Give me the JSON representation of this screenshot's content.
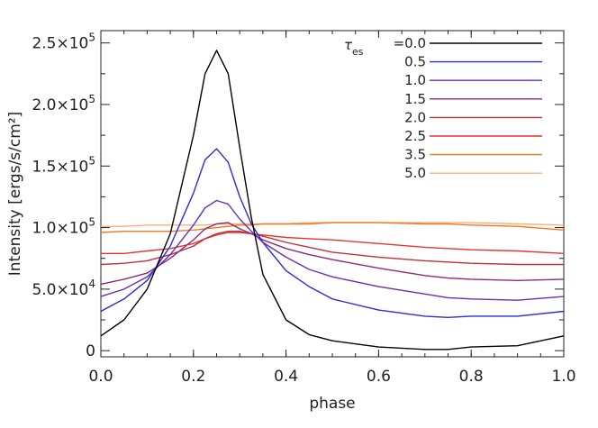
{
  "chart_data": {
    "type": "line",
    "title": "",
    "xlabel": "phase",
    "ylabel": "Intensity [ergs/s/cm²]",
    "xlim": [
      0.0,
      1.0
    ],
    "ylim": [
      -5000,
      260000
    ],
    "x_ticks": [
      0.0,
      0.2,
      0.4,
      0.6,
      0.8,
      1.0
    ],
    "x_tick_labels": [
      "0.0",
      "0.2",
      "0.4",
      "0.6",
      "0.8",
      "1.0"
    ],
    "y_ticks": [
      0,
      50000,
      100000,
      150000,
      200000,
      250000
    ],
    "y_tick_labels": [
      {
        "mantissa": "0",
        "exp": ""
      },
      {
        "mantissa": "5.0×10",
        "exp": "4"
      },
      {
        "mantissa": "1.0×10",
        "exp": "5"
      },
      {
        "mantissa": "1.5×10",
        "exp": "5"
      },
      {
        "mantissa": "2.0×10",
        "exp": "5"
      },
      {
        "mantissa": "2.5×10",
        "exp": "5"
      }
    ],
    "grid": false,
    "legend_position": "top-right",
    "legend_symbol": {
      "base": "τ",
      "sub": "es"
    },
    "x": [
      0.0,
      0.05,
      0.1,
      0.15,
      0.2,
      0.225,
      0.25,
      0.275,
      0.3,
      0.325,
      0.35,
      0.4,
      0.45,
      0.5,
      0.6,
      0.7,
      0.75,
      0.8,
      0.9,
      1.0
    ],
    "series": [
      {
        "name": "=0.0",
        "color": "#000000",
        "values": [
          12000,
          25000,
          50000,
          95000,
          175000,
          225000,
          244000,
          225000,
          165000,
          108000,
          62000,
          25000,
          13000,
          8000,
          3000,
          1000,
          1000,
          3000,
          4000,
          12000
        ]
      },
      {
        "name": "0.5",
        "color": "#2b2bd9",
        "values": [
          32000,
          42000,
          57000,
          85000,
          128000,
          155000,
          164000,
          153000,
          125000,
          103000,
          88000,
          65000,
          52000,
          42000,
          33000,
          28000,
          27000,
          28000,
          28000,
          32000
        ]
      },
      {
        "name": "1.0",
        "color": "#6a2fb0",
        "values": [
          44000,
          50000,
          60000,
          78000,
          102000,
          116000,
          122000,
          119000,
          107000,
          97000,
          88000,
          76000,
          66000,
          60000,
          52000,
          46000,
          43000,
          42000,
          41000,
          44000
        ]
      },
      {
        "name": "1.5",
        "color": "#8c2a78",
        "values": [
          54000,
          58000,
          63000,
          75000,
          90000,
          99000,
          103000,
          104000,
          99000,
          95000,
          90000,
          83000,
          78000,
          74000,
          67000,
          61000,
          59000,
          58000,
          57000,
          58000
        ]
      },
      {
        "name": "2.0",
        "color": "#c0303c",
        "values": [
          70000,
          71000,
          73000,
          78000,
          85000,
          91000,
          95000,
          97000,
          97000,
          95000,
          93000,
          88000,
          84000,
          80000,
          76000,
          73000,
          72000,
          71000,
          70000,
          70000
        ]
      },
      {
        "name": "2.5",
        "color": "#e0382c",
        "values": [
          79000,
          79000,
          81000,
          83000,
          87000,
          91000,
          94000,
          96000,
          96000,
          95000,
          94000,
          92000,
          91000,
          90000,
          87000,
          84000,
          83000,
          82000,
          81000,
          79000
        ]
      },
      {
        "name": "3.5",
        "color": "#f07820",
        "values": [
          96000,
          97000,
          97000,
          97000,
          98000,
          99000,
          100000,
          101000,
          102000,
          102000,
          103000,
          103000,
          103000,
          104000,
          104000,
          103000,
          103000,
          102000,
          101000,
          98000
        ]
      },
      {
        "name": "5.0",
        "color": "#f8b07a",
        "values": [
          101000,
          101000,
          102000,
          102000,
          102000,
          102000,
          103000,
          103000,
          103000,
          103000,
          103000,
          103000,
          104000,
          104000,
          104000,
          104000,
          104000,
          104000,
          103000,
          102000
        ]
      }
    ]
  }
}
